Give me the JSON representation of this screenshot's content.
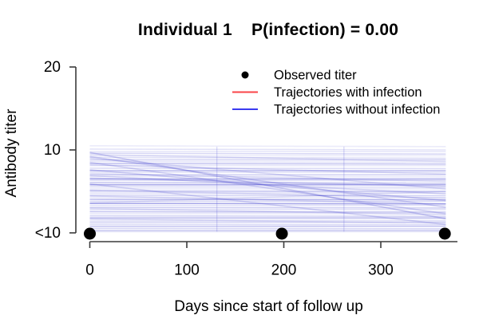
{
  "page": {
    "background": "#ffffff"
  },
  "chart_data": {
    "type": "line",
    "title": "Individual 1    P(infection) = 0.00",
    "title_parts": {
      "individual": "Individual 1",
      "p_infection": "P(infection) = 0.00"
    },
    "xlabel": "Days since start of follow up",
    "ylabel": "Antibody titer",
    "x_ticks": [
      0,
      100,
      200,
      300
    ],
    "xlim": [
      0,
      367
    ],
    "y_ticks": [
      {
        "value": 0,
        "label": "<10"
      },
      {
        "value": 10,
        "label": "10"
      },
      {
        "value": 20,
        "label": "20"
      }
    ],
    "grid": false,
    "axis_color": "#3b3b3b",
    "legend": {
      "position": "top-right",
      "entries": [
        {
          "label": "Observed titer",
          "marker": "point",
          "color": "#000000"
        },
        {
          "label": "Trajectories with infection",
          "marker": "line",
          "color": "#fa4347"
        },
        {
          "label": "Trajectories without infection",
          "marker": "line",
          "color": "#3a3af0"
        }
      ]
    },
    "observed_points": {
      "days": [
        0,
        198,
        366
      ],
      "value_label": "<10",
      "value": 0,
      "color": "#000000"
    },
    "trajectories_with_infection": {
      "color": "#fa4347",
      "count": 0,
      "lines": []
    },
    "trajectories_without_infection": {
      "color": "#3c3ccc",
      "count": 58,
      "x_start_day": 0,
      "x_end_day": 367,
      "format": "[titer_start, titer_end, opacity]",
      "lines": [
        [
          10.5,
          10.4,
          0.1
        ],
        [
          10.1,
          10.0,
          0.14
        ],
        [
          9.8,
          9.8,
          0.12
        ],
        [
          9.6,
          9.5,
          0.2
        ],
        [
          9.3,
          9.3,
          0.1
        ],
        [
          9.1,
          9.0,
          0.16
        ],
        [
          8.8,
          8.8,
          0.22
        ],
        [
          8.6,
          8.5,
          0.12
        ],
        [
          8.35,
          8.3,
          0.3
        ],
        [
          8.1,
          8.1,
          0.12
        ],
        [
          7.8,
          7.75,
          0.18
        ],
        [
          7.5,
          7.5,
          0.35
        ],
        [
          7.3,
          7.3,
          0.14
        ],
        [
          7.0,
          7.0,
          0.22
        ],
        [
          6.8,
          6.75,
          0.12
        ],
        [
          6.5,
          6.5,
          0.4
        ],
        [
          6.3,
          6.3,
          0.16
        ],
        [
          6.05,
          6.0,
          0.28
        ],
        [
          5.8,
          5.8,
          0.45
        ],
        [
          5.55,
          5.5,
          0.18
        ],
        [
          5.3,
          5.3,
          0.12
        ],
        [
          5.05,
          5.0,
          0.3
        ],
        [
          4.8,
          4.8,
          0.16
        ],
        [
          4.55,
          4.5,
          0.22
        ],
        [
          4.3,
          4.3,
          0.12
        ],
        [
          4.05,
          4.0,
          0.35
        ],
        [
          3.8,
          3.8,
          0.2
        ],
        [
          3.55,
          3.5,
          0.45
        ],
        [
          3.3,
          3.3,
          0.14
        ],
        [
          3.05,
          3.0,
          0.25
        ],
        [
          2.8,
          2.8,
          0.16
        ],
        [
          2.55,
          2.5,
          0.3
        ],
        [
          2.3,
          2.3,
          0.12
        ],
        [
          2.05,
          2.0,
          0.22
        ],
        [
          1.8,
          1.8,
          0.35
        ],
        [
          1.55,
          1.5,
          0.15
        ],
        [
          1.3,
          1.3,
          0.25
        ],
        [
          1.05,
          1.0,
          0.18
        ],
        [
          0.8,
          0.8,
          0.3
        ],
        [
          0.55,
          0.5,
          0.2
        ],
        [
          0.3,
          0.3,
          0.25
        ],
        [
          0.15,
          0.15,
          0.15
        ],
        [
          9.45,
          8.6,
          0.15
        ],
        [
          8.2,
          7.1,
          0.18
        ],
        [
          7.15,
          6.2,
          0.14
        ],
        [
          6.6,
          5.6,
          0.2
        ],
        [
          5.15,
          4.2,
          0.16
        ],
        [
          4.45,
          3.5,
          0.18
        ],
        [
          2.95,
          2.2,
          0.15
        ],
        [
          1.7,
          1.15,
          0.14
        ],
        [
          9.7,
          1.7,
          0.25
        ],
        [
          9.2,
          3.1,
          0.22
        ],
        [
          8.5,
          2.3,
          0.2
        ],
        [
          7.6,
          3.9,
          0.22
        ],
        [
          6.9,
          4.7,
          0.18
        ],
        [
          5.9,
          1.0,
          0.2
        ],
        [
          3.6,
          5.0,
          0.12
        ],
        [
          9.0,
          5.3,
          0.18
        ]
      ]
    },
    "knot_days": [
      131,
      262
    ],
    "knot_line": {
      "color": "#5050d8",
      "opacity": 0.22
    }
  }
}
